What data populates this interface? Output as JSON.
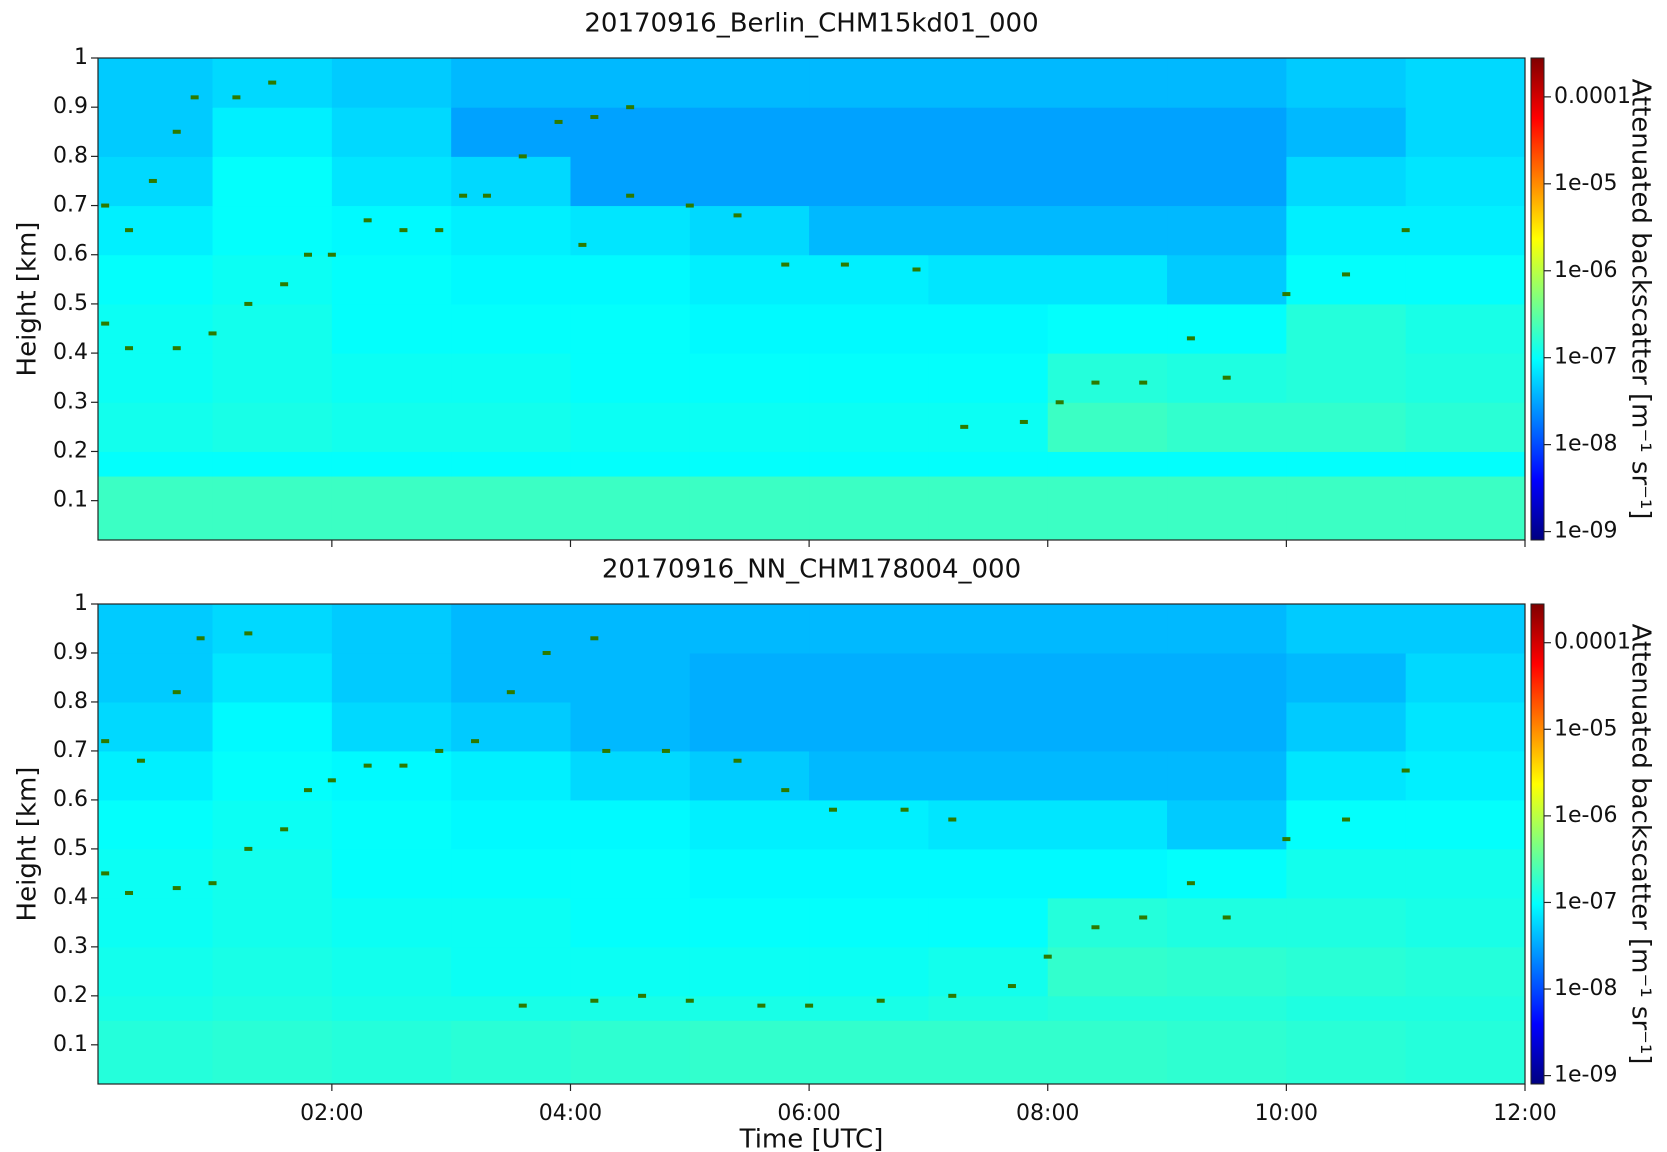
{
  "chart_data": [
    {
      "type": "heatmap",
      "title": "20170916_Berlin_CHM15kd01_000",
      "ylabel": "Height [km]",
      "xlim": [
        0.04,
        12
      ],
      "xticks": [
        2,
        4,
        6,
        8,
        10,
        12
      ],
      "ylim": [
        0.02,
        1
      ],
      "yticks": [
        0.1,
        0.2,
        0.3,
        0.4,
        0.5,
        0.6,
        0.7,
        0.8,
        0.9,
        1
      ],
      "xbins": [
        0.04,
        1,
        2,
        3,
        4,
        5,
        6,
        7,
        8,
        9,
        10,
        11,
        12
      ],
      "ybins": [
        0.02,
        0.15,
        0.2,
        0.3,
        0.4,
        0.5,
        0.6,
        0.7,
        0.8,
        0.9,
        1
      ],
      "z": [
        [
          2e-07,
          2e-07,
          2e-07,
          2e-07,
          2e-07,
          2e-07,
          2e-07,
          2e-07,
          2e-07,
          2e-07,
          2e-07,
          2e-07
        ],
        [
          1e-07,
          1e-07,
          1e-07,
          1e-07,
          1e-07,
          1e-07,
          1e-07,
          1e-07,
          1e-07,
          1e-07,
          1e-07,
          1e-07
        ],
        [
          1.2e-07,
          1.3e-07,
          1.2e-07,
          1.2e-07,
          1.1e-07,
          1.1e-07,
          1.1e-07,
          1.1e-07,
          2e-07,
          1.8e-07,
          1.8e-07,
          1.6e-07
        ],
        [
          1.1e-07,
          1.2e-07,
          1.1e-07,
          1.1e-07,
          1e-07,
          1e-07,
          1e-07,
          1e-07,
          1.5e-07,
          1.4e-07,
          1.5e-07,
          1.4e-07
        ],
        [
          1.1e-07,
          1.2e-07,
          1e-07,
          1e-07,
          1e-07,
          9e-08,
          9e-08,
          9e-08,
          1e-07,
          1e-07,
          1.5e-07,
          1.3e-07
        ],
        [
          1e-07,
          1.1e-07,
          1e-07,
          9e-08,
          9e-08,
          8e-08,
          8e-08,
          7e-08,
          7e-08,
          5e-08,
          1e-07,
          1e-07
        ],
        [
          8e-08,
          1e-07,
          9e-08,
          8e-08,
          7e-08,
          6e-08,
          4e-08,
          4e-08,
          4e-08,
          4e-08,
          8e-08,
          8e-08
        ],
        [
          6e-08,
          1e-07,
          7e-08,
          6e-08,
          3e-08,
          3e-08,
          3e-08,
          3e-08,
          3e-08,
          3e-08,
          6e-08,
          7e-08
        ],
        [
          5e-08,
          8e-08,
          6e-08,
          3e-08,
          3e-08,
          3e-08,
          3e-08,
          3e-08,
          3e-08,
          3e-08,
          4e-08,
          6e-08
        ],
        [
          5e-08,
          6e-08,
          5e-08,
          4e-08,
          4e-08,
          4e-08,
          4e-08,
          4e-08,
          4e-08,
          4e-08,
          5e-08,
          6e-08
        ]
      ],
      "layers": {
        "color": "#2d7a00",
        "x": [
          0.1,
          0.3,
          0.7,
          1.0,
          1.3,
          1.6,
          1.8,
          2.0,
          2.3,
          2.6,
          2.9,
          3.1,
          3.3,
          3.6,
          3.9,
          4.2,
          4.5,
          4.1,
          4.5,
          5.0,
          5.4,
          5.8,
          6.3,
          6.9,
          0.1,
          0.3,
          0.5,
          0.7,
          0.85,
          1.2,
          1.5,
          7.3,
          7.8,
          8.1,
          8.4,
          8.8,
          9.2,
          9.5,
          10.0,
          10.5,
          11.0
        ],
        "y": [
          0.46,
          0.41,
          0.41,
          0.44,
          0.5,
          0.54,
          0.6,
          0.6,
          0.67,
          0.65,
          0.65,
          0.72,
          0.72,
          0.8,
          0.87,
          0.88,
          0.9,
          0.62,
          0.72,
          0.7,
          0.68,
          0.58,
          0.58,
          0.57,
          0.7,
          0.65,
          0.75,
          0.85,
          0.92,
          0.92,
          0.95,
          0.25,
          0.26,
          0.3,
          0.34,
          0.34,
          0.43,
          0.35,
          0.52,
          0.56,
          0.65
        ]
      },
      "colorbar": {
        "label": "Attenuated backscatter [m⁻¹ sr⁻¹]",
        "scale": "log",
        "colormap": "jet",
        "lim": [
          8e-10,
          0.00028
        ],
        "ticks": [
          {
            "value": 1e-09,
            "label": "1e-09"
          },
          {
            "value": 1e-08,
            "label": "1e-08"
          },
          {
            "value": 1e-07,
            "label": "1e-07"
          },
          {
            "value": 1e-06,
            "label": "1e-06"
          },
          {
            "value": 1e-05,
            "label": "1e-05"
          },
          0.0001
        ]
      }
    },
    {
      "type": "heatmap",
      "title": "20170916_NN_CHM178004_000",
      "ylabel": "Height [km]",
      "xlabel": "Time [UTC]",
      "xlim": [
        0.04,
        12
      ],
      "xticks": [
        {
          "value": 2,
          "label": "02:00"
        },
        {
          "value": 4,
          "label": "04:00"
        },
        {
          "value": 6,
          "label": "06:00"
        },
        {
          "value": 8,
          "label": "08:00"
        },
        {
          "value": 10,
          "label": "10:00"
        },
        {
          "value": 12,
          "label": "12:00"
        }
      ],
      "ylim": [
        0.02,
        1
      ],
      "yticks": [
        0.1,
        0.2,
        0.3,
        0.4,
        0.5,
        0.6,
        0.7,
        0.8,
        0.9,
        1
      ],
      "xbins": [
        0.04,
        1,
        2,
        3,
        4,
        5,
        6,
        7,
        8,
        9,
        10,
        11,
        12
      ],
      "ybins": [
        0.02,
        0.15,
        0.2,
        0.3,
        0.4,
        0.5,
        0.6,
        0.7,
        0.8,
        0.9,
        1
      ],
      "z": [
        [
          1.5e-07,
          1.6e-07,
          1.5e-07,
          1.6e-07,
          1.7e-07,
          1.8e-07,
          1.8e-07,
          1.8e-07,
          1.8e-07,
          1.7e-07,
          1.6e-07,
          1.5e-07
        ],
        [
          1.3e-07,
          1.4e-07,
          1.3e-07,
          1.3e-07,
          1.3e-07,
          1.3e-07,
          1.3e-07,
          1.4e-07,
          1.5e-07,
          1.5e-07,
          1.4e-07,
          1.4e-07
        ],
        [
          1.2e-07,
          1.3e-07,
          1.2e-07,
          1.1e-07,
          1.1e-07,
          1.1e-07,
          1.1e-07,
          1.2e-07,
          1.8e-07,
          1.7e-07,
          1.6e-07,
          1.5e-07
        ],
        [
          1.1e-07,
          1.2e-07,
          1.1e-07,
          1.1e-07,
          1e-07,
          1e-07,
          1e-07,
          1e-07,
          1.5e-07,
          1.4e-07,
          1.4e-07,
          1.3e-07
        ],
        [
          1.1e-07,
          1.2e-07,
          1e-07,
          1e-07,
          1e-07,
          9e-08,
          9e-08,
          9e-08,
          9e-08,
          1e-07,
          1.2e-07,
          1.2e-07
        ],
        [
          1e-07,
          1.1e-07,
          1e-07,
          9e-08,
          9e-08,
          8e-08,
          8e-08,
          7e-08,
          7e-08,
          5e-08,
          1e-07,
          1e-07
        ],
        [
          8e-08,
          1e-07,
          9e-08,
          8e-08,
          6e-08,
          5e-08,
          4e-08,
          4e-08,
          4e-08,
          4e-08,
          7e-08,
          8e-08
        ],
        [
          6e-08,
          9e-08,
          6e-08,
          5e-08,
          4e-08,
          3.5e-08,
          3.5e-08,
          3.5e-08,
          3.5e-08,
          3.5e-08,
          5e-08,
          7e-08
        ],
        [
          5e-08,
          7e-08,
          5e-08,
          4e-08,
          4e-08,
          3.5e-08,
          3.5e-08,
          3.5e-08,
          3.5e-08,
          3.5e-08,
          4e-08,
          6e-08
        ],
        [
          5e-08,
          6e-08,
          5e-08,
          4e-08,
          4e-08,
          4e-08,
          4e-08,
          4e-08,
          4e-08,
          4e-08,
          5e-08,
          5e-08
        ]
      ],
      "layers": {
        "color": "#2d7a00",
        "x": [
          0.1,
          0.3,
          0.7,
          1.0,
          1.3,
          1.6,
          1.8,
          2.0,
          2.3,
          2.6,
          2.9,
          3.2,
          3.5,
          3.8,
          4.2,
          3.6,
          4.2,
          4.6,
          5.0,
          5.6,
          6.0,
          6.6,
          7.2,
          7.7,
          8.0,
          8.4,
          8.8,
          9.2,
          9.5,
          4.3,
          4.8,
          5.4,
          5.8,
          6.2,
          6.8,
          7.2,
          0.1,
          0.4,
          0.7,
          0.9,
          1.3,
          10.0,
          10.5,
          11.0
        ],
        "y": [
          0.45,
          0.41,
          0.42,
          0.43,
          0.5,
          0.54,
          0.62,
          0.64,
          0.67,
          0.67,
          0.7,
          0.72,
          0.82,
          0.9,
          0.93,
          0.18,
          0.19,
          0.2,
          0.19,
          0.18,
          0.18,
          0.19,
          0.2,
          0.22,
          0.28,
          0.34,
          0.36,
          0.43,
          0.36,
          0.7,
          0.7,
          0.68,
          0.62,
          0.58,
          0.58,
          0.56,
          0.72,
          0.68,
          0.82,
          0.93,
          0.94,
          0.52,
          0.56,
          0.66
        ]
      },
      "colorbar": {
        "label": "Attenuated backscatter [m⁻¹ sr⁻¹]",
        "scale": "log",
        "colormap": "jet",
        "lim": [
          8e-10,
          0.00028
        ],
        "ticks": [
          {
            "value": 1e-09,
            "label": "1e-09"
          },
          {
            "value": 1e-08,
            "label": "1e-08"
          },
          {
            "value": 1e-07,
            "label": "1e-07"
          },
          {
            "value": 1e-06,
            "label": "1e-06"
          },
          {
            "value": 1e-05,
            "label": "1e-05"
          },
          0.0001
        ]
      }
    }
  ]
}
